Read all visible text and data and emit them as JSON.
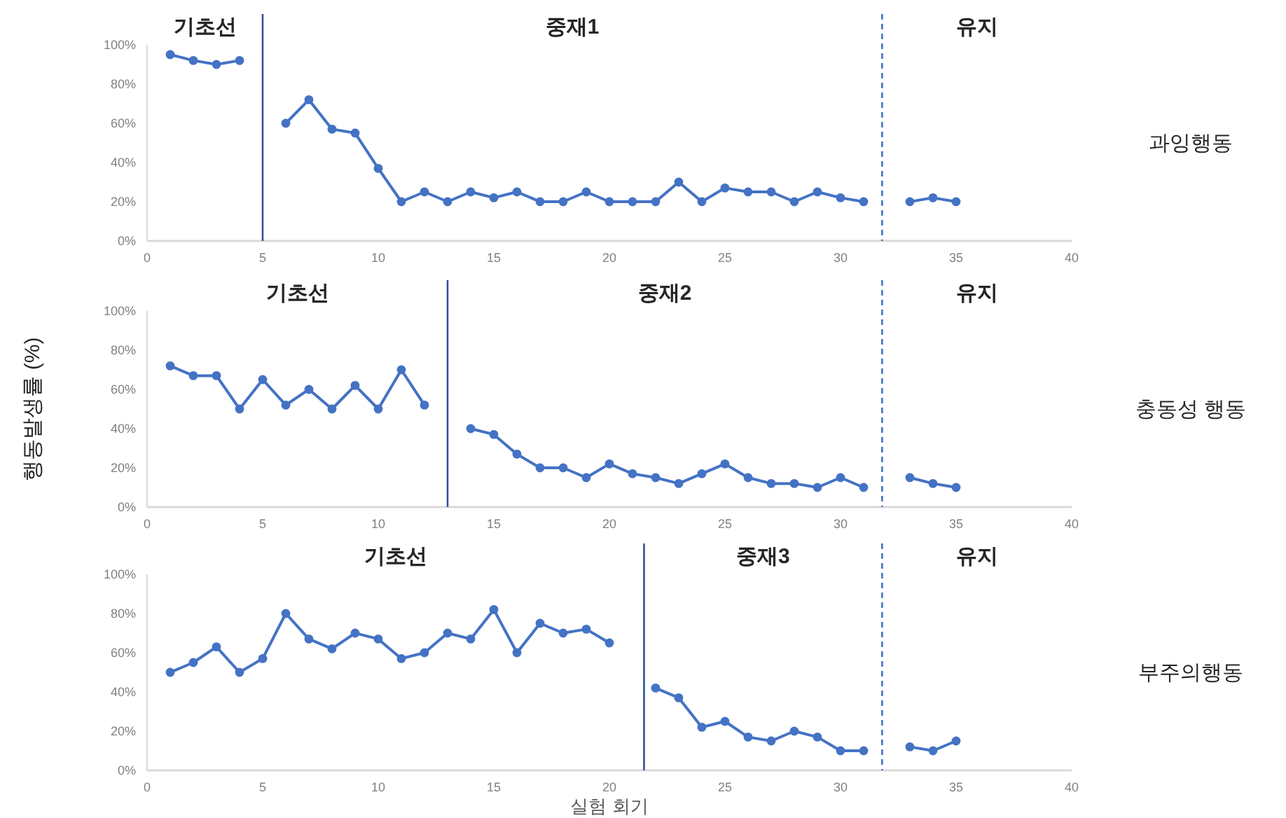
{
  "chart_data": [
    {
      "type": "line",
      "x": [
        1,
        2,
        3,
        4,
        5,
        6,
        7,
        8,
        9,
        10,
        11,
        12,
        13,
        14,
        15,
        16,
        17,
        18,
        19,
        20,
        21,
        22,
        23,
        24,
        25,
        26,
        27,
        28,
        29,
        30,
        31,
        32,
        33,
        34,
        35
      ],
      "series": [
        {
          "name": "과잉행동",
          "color": "#4472c4",
          "values": [
            95,
            92,
            90,
            92,
            null,
            60,
            72,
            57,
            55,
            37,
            20,
            25,
            20,
            25,
            22,
            25,
            20,
            20,
            25,
            20,
            20,
            20,
            30,
            20,
            27,
            25,
            25,
            20,
            25,
            22,
            20,
            null,
            20,
            22,
            20
          ]
        }
      ],
      "xlim": [
        0,
        40
      ],
      "xticks": [
        0,
        5,
        10,
        15,
        20,
        25,
        30,
        35,
        40
      ],
      "ylim": [
        0,
        100
      ],
      "yticks": [
        {
          "value": 0,
          "label": "0%"
        },
        {
          "value": 20,
          "label": "20%"
        },
        {
          "value": 40,
          "label": "40%"
        },
        {
          "value": 60,
          "label": "60%"
        },
        {
          "value": 80,
          "label": "80%"
        },
        {
          "value": 100,
          "label": "100%"
        }
      ],
      "marker": "circle",
      "line_style": "solid",
      "ref_lines": [
        {
          "axis": "x",
          "value": 5,
          "color": "#2f5597",
          "line_style": "solid"
        },
        {
          "axis": "x",
          "value": 31.8,
          "color": "#4472c4",
          "line_style": "dashed"
        }
      ],
      "annotations": [
        "기초선",
        "중재1",
        "유지"
      ]
    },
    {
      "type": "line",
      "ylabel": "행동발생률 (%)",
      "x": [
        1,
        2,
        3,
        4,
        5,
        6,
        7,
        8,
        9,
        10,
        11,
        12,
        13,
        14,
        15,
        16,
        17,
        18,
        19,
        20,
        21,
        22,
        23,
        24,
        25,
        26,
        27,
        28,
        29,
        30,
        31,
        32,
        33,
        34,
        35
      ],
      "series": [
        {
          "name": "충동성 행동",
          "color": "#4472c4",
          "values": [
            72,
            67,
            67,
            50,
            65,
            52,
            60,
            50,
            62,
            50,
            70,
            52,
            null,
            40,
            37,
            27,
            20,
            20,
            15,
            22,
            17,
            15,
            12,
            17,
            22,
            15,
            12,
            12,
            10,
            15,
            10,
            null,
            15,
            12,
            10
          ]
        }
      ],
      "xlim": [
        0,
        40
      ],
      "xticks": [
        0,
        5,
        10,
        15,
        20,
        25,
        30,
        35,
        40
      ],
      "ylim": [
        0,
        100
      ],
      "yticks": [
        {
          "value": 0,
          "label": "0%"
        },
        {
          "value": 20,
          "label": "20%"
        },
        {
          "value": 40,
          "label": "40%"
        },
        {
          "value": 60,
          "label": "60%"
        },
        {
          "value": 80,
          "label": "80%"
        },
        {
          "value": 100,
          "label": "100%"
        }
      ],
      "marker": "circle",
      "line_style": "solid",
      "ref_lines": [
        {
          "axis": "x",
          "value": 13,
          "color": "#2f5597",
          "line_style": "solid"
        },
        {
          "axis": "x",
          "value": 31.8,
          "color": "#4472c4",
          "line_style": "dashed"
        }
      ],
      "annotations": [
        "기초선",
        "중재2",
        "유지"
      ]
    },
    {
      "type": "line",
      "xlabel": "실험 회기",
      "x": [
        1,
        2,
        3,
        4,
        5,
        6,
        7,
        8,
        9,
        10,
        11,
        12,
        13,
        14,
        15,
        16,
        17,
        18,
        19,
        20,
        21,
        22,
        23,
        24,
        25,
        26,
        27,
        28,
        29,
        30,
        31,
        32,
        33,
        34,
        35
      ],
      "series": [
        {
          "name": "부주의행동",
          "color": "#4472c4",
          "values": [
            50,
            55,
            63,
            50,
            57,
            80,
            67,
            62,
            70,
            67,
            57,
            60,
            70,
            67,
            82,
            60,
            75,
            70,
            72,
            65,
            null,
            42,
            37,
            22,
            25,
            17,
            15,
            20,
            17,
            10,
            10,
            null,
            12,
            10,
            15
          ]
        }
      ],
      "xlim": [
        0,
        40
      ],
      "xticks": [
        0,
        5,
        10,
        15,
        20,
        25,
        30,
        35,
        40
      ],
      "ylim": [
        0,
        100
      ],
      "yticks": [
        {
          "value": 0,
          "label": "0%"
        },
        {
          "value": 20,
          "label": "20%"
        },
        {
          "value": 40,
          "label": "40%"
        },
        {
          "value": 60,
          "label": "60%"
        },
        {
          "value": 80,
          "label": "80%"
        },
        {
          "value": 100,
          "label": "100%"
        }
      ],
      "marker": "circle",
      "line_style": "solid",
      "ref_lines": [
        {
          "axis": "x",
          "value": 21.5,
          "color": "#2f5597",
          "line_style": "solid"
        },
        {
          "axis": "x",
          "value": 31.8,
          "color": "#4472c4",
          "line_style": "dashed"
        }
      ],
      "annotations": [
        "기초선",
        "중재3",
        "유지"
      ]
    }
  ]
}
